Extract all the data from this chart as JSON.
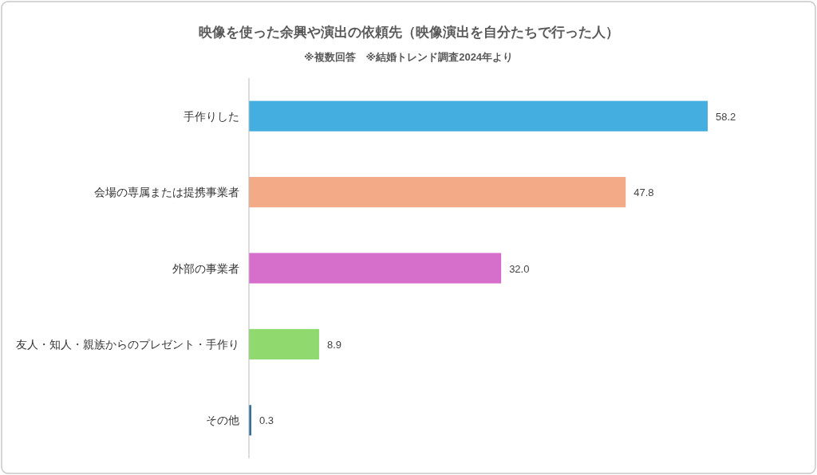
{
  "chart_data": {
    "type": "bar",
    "orientation": "horizontal",
    "title": "映像を使った余興や演出の依頼先（映像演出を自分たちで行った人）",
    "subtitle": "※複数回答　※結婚トレンド調査2024年より",
    "categories": [
      "手作りした",
      "会場の専属または提携事業者",
      "外部の事業者",
      "友人・知人・親族からのプレゼント・手作り",
      "その他"
    ],
    "values": [
      58.2,
      47.8,
      32.0,
      8.9,
      0.3
    ],
    "colors": [
      "#45aee0",
      "#f2aa87",
      "#d66ecb",
      "#8fd96e",
      "#2e6e9e"
    ],
    "value_labels": [
      "58.2",
      "47.8",
      "32.0",
      "8.9",
      "0.3"
    ]
  }
}
